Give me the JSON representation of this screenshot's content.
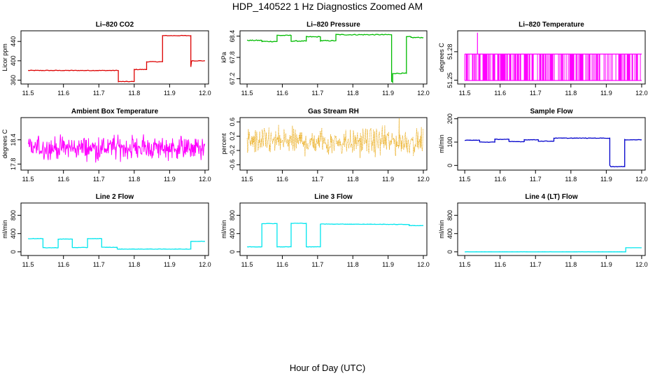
{
  "title": "HDP_140522  1 Hz Diagnostics Zoomed AM",
  "xlabel": "Hour of Day (UTC)",
  "chart_data": [
    {
      "type": "line",
      "title": "Li–820 CO2",
      "ylabel": "Licor ppm",
      "color": "#dd0000",
      "xticks": [
        "11.5",
        "11.6",
        "11.7",
        "11.8",
        "11.9",
        "12.0"
      ],
      "xlim": [
        11.48,
        12.01
      ],
      "yticks": [
        360,
        400,
        440
      ],
      "ylim": [
        352,
        462
      ],
      "noise": 0.6,
      "series": [
        {
          "x": [
            11.5,
            11.755,
            11.755,
            11.8,
            11.8,
            11.835,
            11.835,
            11.88,
            11.88,
            11.96,
            11.96,
            11.962,
            11.962,
            12.0
          ],
          "y": [
            380,
            380,
            357,
            357,
            382,
            382,
            398,
            398,
            452,
            452,
            387,
            400,
            400,
            400
          ]
        }
      ]
    },
    {
      "type": "line",
      "title": "Li–820 Pressure",
      "ylabel": "kPa",
      "color": "#00bb00",
      "xticks": [
        "11.5",
        "11.6",
        "11.7",
        "11.8",
        "11.9",
        "12.0"
      ],
      "xlim": [
        11.48,
        12.01
      ],
      "yticks": [
        "67.2",
        "67.8",
        "68.4"
      ],
      "ylim": [
        67.05,
        68.55
      ],
      "noise": 0.012,
      "series": [
        {
          "x": [
            11.5,
            11.542,
            11.542,
            11.585,
            11.585,
            11.625,
            11.625,
            11.668,
            11.668,
            11.708,
            11.708,
            11.752,
            11.752,
            11.91,
            11.91,
            11.913,
            11.913,
            11.952,
            11.952,
            11.965,
            11.965,
            12.0
          ],
          "y": [
            68.28,
            68.28,
            68.25,
            68.25,
            68.42,
            68.42,
            68.26,
            68.26,
            68.38,
            68.38,
            68.27,
            68.27,
            68.44,
            68.44,
            67.12,
            67.1,
            67.35,
            67.35,
            68.38,
            68.38,
            68.36,
            68.36
          ]
        }
      ]
    },
    {
      "type": "line",
      "title": "Li–820 Temperature",
      "ylabel": "degrees C",
      "color": "#ff00ff",
      "xticks": [
        "11.5",
        "11.6",
        "11.7",
        "11.8",
        "11.9",
        "12.0"
      ],
      "xlim": [
        11.48,
        12.01
      ],
      "yticks": [
        "51.25",
        "51.28"
      ],
      "ylim": [
        51.246,
        51.302
      ],
      "levels": [
        51.2497,
        51.2775
      ],
      "spike": {
        "x": 11.536,
        "y": 51.3
      }
    },
    {
      "type": "line",
      "title": "Ambient Box Temperature",
      "ylabel": "degrees C",
      "color": "#ff00ff",
      "xticks": [
        "11.5",
        "11.6",
        "11.7",
        "11.8",
        "11.9",
        "12.0"
      ],
      "xlim": [
        11.48,
        12.01
      ],
      "yticks": [
        "17.8",
        "18.4"
      ],
      "ylim": [
        17.65,
        18.95
      ],
      "center": 18.2,
      "amp": 0.4
    },
    {
      "type": "scatter",
      "title": "Gas Stream RH",
      "ylabel": "percent",
      "color": "#e8a200",
      "xticks": [
        "11.5",
        "11.6",
        "11.7",
        "11.8",
        "11.9",
        "12.0"
      ],
      "xlim": [
        11.48,
        12.01
      ],
      "yticks": [
        "-0.6",
        "-0.2",
        "0.2",
        "0.6"
      ],
      "ylim": [
        -0.75,
        0.72
      ],
      "center": 0.05,
      "amp": 0.55
    },
    {
      "type": "line",
      "title": "Sample Flow",
      "ylabel": "ml/min",
      "color": "#0000cc",
      "xticks": [
        "11.5",
        "11.6",
        "11.7",
        "11.8",
        "11.9",
        "12.0"
      ],
      "xlim": [
        11.48,
        12.01
      ],
      "yticks": [
        0,
        100,
        200
      ],
      "ylim": [
        -20,
        205
      ],
      "noise": 1.0,
      "series": [
        {
          "x": [
            11.5,
            11.542,
            11.542,
            11.585,
            11.585,
            11.625,
            11.625,
            11.668,
            11.668,
            11.708,
            11.708,
            11.752,
            11.752,
            11.91,
            11.91,
            11.913,
            11.913,
            11.952,
            11.952,
            12.0
          ],
          "y": [
            108,
            108,
            100,
            100,
            112,
            112,
            102,
            102,
            110,
            110,
            104,
            104,
            117,
            117,
            0,
            -5,
            -5,
            -5,
            110,
            110
          ]
        }
      ]
    },
    {
      "type": "line",
      "title": "Line 2 Flow",
      "ylabel": "ml/min",
      "color": "#00e5ee",
      "xticks": [
        "11.5",
        "11.6",
        "11.7",
        "11.8",
        "11.9",
        "12.0"
      ],
      "xlim": [
        11.48,
        12.01
      ],
      "yticks": [
        0,
        400,
        800
      ],
      "ylim": [
        -80,
        1070
      ],
      "noise": 4,
      "series": [
        {
          "x": [
            11.5,
            11.542,
            11.542,
            11.585,
            11.585,
            11.625,
            11.625,
            11.668,
            11.668,
            11.708,
            11.708,
            11.752,
            11.752,
            11.96,
            11.96,
            12.0
          ],
          "y": [
            290,
            290,
            90,
            90,
            280,
            280,
            95,
            95,
            290,
            290,
            100,
            100,
            60,
            60,
            230,
            230
          ]
        }
      ]
    },
    {
      "type": "line",
      "title": "Line 3 Flow",
      "ylabel": "ml/min",
      "color": "#00e5ee",
      "xticks": [
        "11.5",
        "11.6",
        "11.7",
        "11.8",
        "11.9",
        "12.0"
      ],
      "xlim": [
        11.48,
        12.01
      ],
      "yticks": [
        0,
        400,
        800
      ],
      "ylim": [
        -80,
        1070
      ],
      "noise": 4,
      "series": [
        {
          "x": [
            11.5,
            11.542,
            11.542,
            11.585,
            11.585,
            11.625,
            11.625,
            11.668,
            11.668,
            11.708,
            11.708,
            11.96,
            11.96,
            12.0
          ],
          "y": [
            110,
            110,
            620,
            620,
            110,
            110,
            625,
            625,
            110,
            110,
            610,
            600,
            575,
            575
          ]
        }
      ]
    },
    {
      "type": "line",
      "title": "Line 4 (LT) Flow",
      "ylabel": "ml/min",
      "color": "#00e5ee",
      "xticks": [
        "11.5",
        "11.6",
        "11.7",
        "11.8",
        "11.9",
        "12.0"
      ],
      "xlim": [
        11.48,
        12.01
      ],
      "yticks": [
        0,
        400,
        800
      ],
      "ylim": [
        -80,
        1070
      ],
      "noise": 1,
      "series": [
        {
          "x": [
            11.5,
            11.955,
            11.955,
            12.0
          ],
          "y": [
            0,
            0,
            90,
            90
          ]
        }
      ]
    }
  ]
}
